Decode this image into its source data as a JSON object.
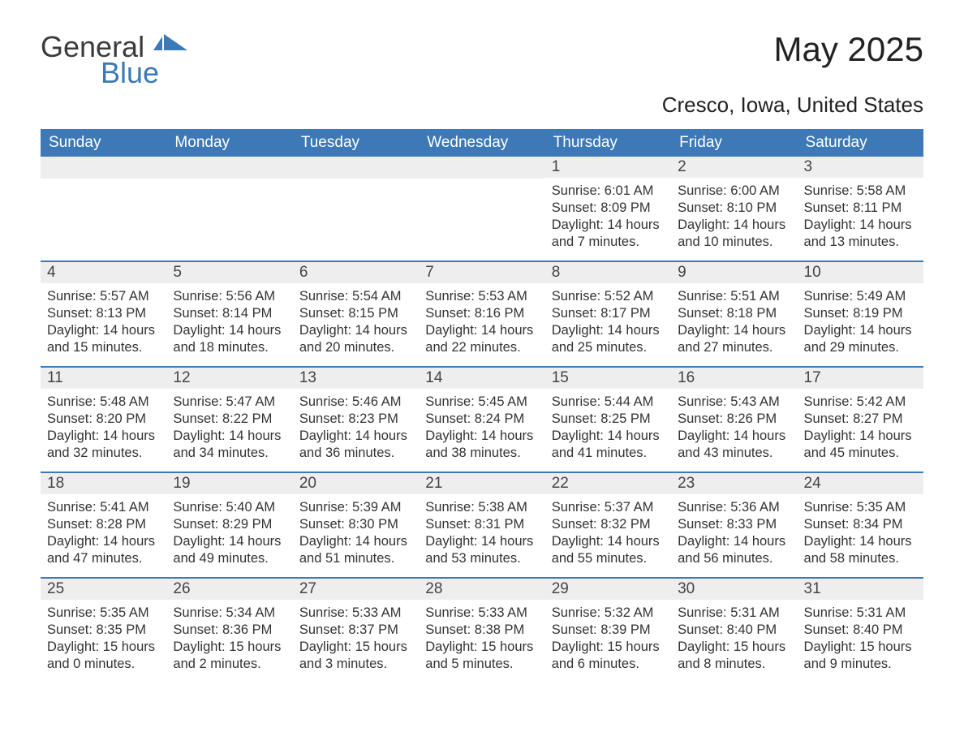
{
  "logo": {
    "word1": "General",
    "word2": "Blue"
  },
  "title": "May 2025",
  "subtitle": "Cresco, Iowa, United States",
  "colors": {
    "header_bg": "#3c79b6",
    "header_fg": "#ffffff",
    "daynum_bg": "#eeeeee",
    "text": "#333333",
    "rule": "#3c79b6",
    "logo_gray": "#3b3b3b",
    "logo_blue": "#3c79b6"
  },
  "layout": {
    "type": "calendar",
    "columns": 7,
    "rows": 5,
    "day_header_fontsize": 19,
    "daynum_fontsize": 19,
    "body_fontsize": 16.5,
    "title_fontsize": 42,
    "subtitle_fontsize": 26
  },
  "day_names": [
    "Sunday",
    "Monday",
    "Tuesday",
    "Wednesday",
    "Thursday",
    "Friday",
    "Saturday"
  ],
  "weeks": [
    [
      null,
      null,
      null,
      null,
      {
        "n": "1",
        "sunrise": "6:01 AM",
        "sunset": "8:09 PM",
        "daylight": "14 hours and 7 minutes."
      },
      {
        "n": "2",
        "sunrise": "6:00 AM",
        "sunset": "8:10 PM",
        "daylight": "14 hours and 10 minutes."
      },
      {
        "n": "3",
        "sunrise": "5:58 AM",
        "sunset": "8:11 PM",
        "daylight": "14 hours and 13 minutes."
      }
    ],
    [
      {
        "n": "4",
        "sunrise": "5:57 AM",
        "sunset": "8:13 PM",
        "daylight": "14 hours and 15 minutes."
      },
      {
        "n": "5",
        "sunrise": "5:56 AM",
        "sunset": "8:14 PM",
        "daylight": "14 hours and 18 minutes."
      },
      {
        "n": "6",
        "sunrise": "5:54 AM",
        "sunset": "8:15 PM",
        "daylight": "14 hours and 20 minutes."
      },
      {
        "n": "7",
        "sunrise": "5:53 AM",
        "sunset": "8:16 PM",
        "daylight": "14 hours and 22 minutes."
      },
      {
        "n": "8",
        "sunrise": "5:52 AM",
        "sunset": "8:17 PM",
        "daylight": "14 hours and 25 minutes."
      },
      {
        "n": "9",
        "sunrise": "5:51 AM",
        "sunset": "8:18 PM",
        "daylight": "14 hours and 27 minutes."
      },
      {
        "n": "10",
        "sunrise": "5:49 AM",
        "sunset": "8:19 PM",
        "daylight": "14 hours and 29 minutes."
      }
    ],
    [
      {
        "n": "11",
        "sunrise": "5:48 AM",
        "sunset": "8:20 PM",
        "daylight": "14 hours and 32 minutes."
      },
      {
        "n": "12",
        "sunrise": "5:47 AM",
        "sunset": "8:22 PM",
        "daylight": "14 hours and 34 minutes."
      },
      {
        "n": "13",
        "sunrise": "5:46 AM",
        "sunset": "8:23 PM",
        "daylight": "14 hours and 36 minutes."
      },
      {
        "n": "14",
        "sunrise": "5:45 AM",
        "sunset": "8:24 PM",
        "daylight": "14 hours and 38 minutes."
      },
      {
        "n": "15",
        "sunrise": "5:44 AM",
        "sunset": "8:25 PM",
        "daylight": "14 hours and 41 minutes."
      },
      {
        "n": "16",
        "sunrise": "5:43 AM",
        "sunset": "8:26 PM",
        "daylight": "14 hours and 43 minutes."
      },
      {
        "n": "17",
        "sunrise": "5:42 AM",
        "sunset": "8:27 PM",
        "daylight": "14 hours and 45 minutes."
      }
    ],
    [
      {
        "n": "18",
        "sunrise": "5:41 AM",
        "sunset": "8:28 PM",
        "daylight": "14 hours and 47 minutes."
      },
      {
        "n": "19",
        "sunrise": "5:40 AM",
        "sunset": "8:29 PM",
        "daylight": "14 hours and 49 minutes."
      },
      {
        "n": "20",
        "sunrise": "5:39 AM",
        "sunset": "8:30 PM",
        "daylight": "14 hours and 51 minutes."
      },
      {
        "n": "21",
        "sunrise": "5:38 AM",
        "sunset": "8:31 PM",
        "daylight": "14 hours and 53 minutes."
      },
      {
        "n": "22",
        "sunrise": "5:37 AM",
        "sunset": "8:32 PM",
        "daylight": "14 hours and 55 minutes."
      },
      {
        "n": "23",
        "sunrise": "5:36 AM",
        "sunset": "8:33 PM",
        "daylight": "14 hours and 56 minutes."
      },
      {
        "n": "24",
        "sunrise": "5:35 AM",
        "sunset": "8:34 PM",
        "daylight": "14 hours and 58 minutes."
      }
    ],
    [
      {
        "n": "25",
        "sunrise": "5:35 AM",
        "sunset": "8:35 PM",
        "daylight": "15 hours and 0 minutes."
      },
      {
        "n": "26",
        "sunrise": "5:34 AM",
        "sunset": "8:36 PM",
        "daylight": "15 hours and 2 minutes."
      },
      {
        "n": "27",
        "sunrise": "5:33 AM",
        "sunset": "8:37 PM",
        "daylight": "15 hours and 3 minutes."
      },
      {
        "n": "28",
        "sunrise": "5:33 AM",
        "sunset": "8:38 PM",
        "daylight": "15 hours and 5 minutes."
      },
      {
        "n": "29",
        "sunrise": "5:32 AM",
        "sunset": "8:39 PM",
        "daylight": "15 hours and 6 minutes."
      },
      {
        "n": "30",
        "sunrise": "5:31 AM",
        "sunset": "8:40 PM",
        "daylight": "15 hours and 8 minutes."
      },
      {
        "n": "31",
        "sunrise": "5:31 AM",
        "sunset": "8:40 PM",
        "daylight": "15 hours and 9 minutes."
      }
    ]
  ],
  "labels": {
    "sunrise": "Sunrise: ",
    "sunset": "Sunset: ",
    "daylight": "Daylight: "
  }
}
